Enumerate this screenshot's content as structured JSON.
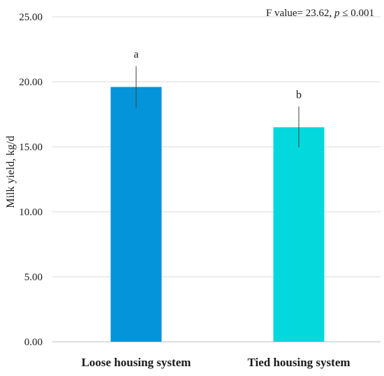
{
  "chart_data": {
    "type": "bar",
    "title": "",
    "annotation": {
      "prefix": "F value= 23.62, ",
      "p_symbol": "p",
      "suffix": " ≤ 0.001"
    },
    "ylabel": "Milk yield, kg/d",
    "xlabel": "",
    "ylim": [
      0,
      25
    ],
    "yticks": [
      "0.00",
      "5.00",
      "10.00",
      "15.00",
      "20.00",
      "25.00"
    ],
    "grid": true,
    "legend": "none",
    "categories": [
      "Loose housing system",
      "Tied housing system"
    ],
    "values": [
      19.6,
      16.5
    ],
    "error": [
      {
        "low": 18.0,
        "high": 21.2
      },
      {
        "low": 14.95,
        "high": 18.1
      }
    ],
    "significance_letters": [
      "a",
      "b"
    ],
    "colors": [
      "#0394d9",
      "#03d8dd"
    ]
  }
}
